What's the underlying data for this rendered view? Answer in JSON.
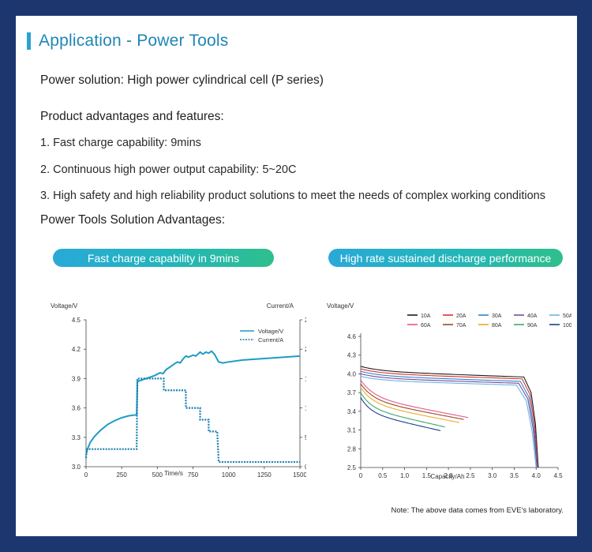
{
  "title": "Application - Power Tools",
  "power_solution": "Power solution: High power cylindrical cell (P series)",
  "advantages_heading": "Product advantages and features:",
  "features": [
    "1. Fast charge capability: 9mins",
    "2. Continuous high power output capability: 5~20C",
    "3. High safety and high reliability product solutions to meet the needs of complex working conditions"
  ],
  "solution_heading": "Power Tools Solution Advantages:",
  "pills": [
    "Fast charge capability in 9mins",
    "High rate sustained discharge performance"
  ],
  "note": "Note: The above data comes from EVE's laboratory.",
  "colors": {
    "accent": "#1f86b5",
    "background": "#1c3670",
    "charge_line": "#1e9cc6",
    "current_line": "#1a7fb0"
  },
  "chart_data": [
    {
      "type": "line",
      "ylabel": "Voltage/V",
      "y2label": "Current/A",
      "xlabel": "Time/s",
      "xlim": [
        0,
        1500
      ],
      "ylim": [
        3.0,
        4.5
      ],
      "y2lim": [
        0,
        25
      ],
      "xticks": [
        "0",
        "250",
        "500",
        "750",
        "1000",
        "1250",
        "1500"
      ],
      "yticks": [
        "3.0",
        "3.3",
        "3.6",
        "3.9",
        "4.2",
        "4.5"
      ],
      "y2ticks": [
        "0",
        "5",
        "10",
        "15",
        "20",
        "25"
      ],
      "legend": [
        "Voltage/V",
        "Current/A"
      ],
      "series": [
        {
          "name": "Voltage/V",
          "axis": "left",
          "points": [
            [
              0,
              3.12
            ],
            [
              10,
              3.18
            ],
            [
              30,
              3.25
            ],
            [
              60,
              3.31
            ],
            [
              100,
              3.37
            ],
            [
              150,
              3.43
            ],
            [
              200,
              3.47
            ],
            [
              250,
              3.5
            ],
            [
              300,
              3.52
            ],
            [
              355,
              3.53
            ],
            [
              360,
              3.87
            ],
            [
              400,
              3.89
            ],
            [
              440,
              3.91
            ],
            [
              480,
              3.93
            ],
            [
              520,
              3.96
            ],
            [
              540,
              3.95
            ],
            [
              560,
              3.99
            ],
            [
              600,
              4.03
            ],
            [
              640,
              4.07
            ],
            [
              660,
              4.06
            ],
            [
              680,
              4.1
            ],
            [
              700,
              4.13
            ],
            [
              720,
              4.12
            ],
            [
              750,
              4.14
            ],
            [
              770,
              4.13
            ],
            [
              800,
              4.17
            ],
            [
              820,
              4.15
            ],
            [
              840,
              4.17
            ],
            [
              860,
              4.16
            ],
            [
              880,
              4.18
            ],
            [
              900,
              4.15
            ],
            [
              930,
              4.07
            ],
            [
              960,
              4.06
            ],
            [
              1000,
              4.07
            ],
            [
              1100,
              4.09
            ],
            [
              1200,
              4.1
            ],
            [
              1300,
              4.11
            ],
            [
              1400,
              4.12
            ],
            [
              1500,
              4.13
            ]
          ]
        },
        {
          "name": "Current/A",
          "axis": "right",
          "dashed": true,
          "points": [
            [
              0,
              1.5
            ],
            [
              5,
              3
            ],
            [
              355,
              3
            ],
            [
              360,
              15
            ],
            [
              545,
              15
            ],
            [
              545,
              13
            ],
            [
              700,
              13
            ],
            [
              700,
              10
            ],
            [
              800,
              10
            ],
            [
              800,
              8
            ],
            [
              860,
              8
            ],
            [
              860,
              6
            ],
            [
              920,
              6
            ],
            [
              930,
              0.8
            ],
            [
              1500,
              0.8
            ]
          ]
        }
      ]
    },
    {
      "type": "line",
      "ylabel": "Voltage/V",
      "xlabel": "Capacity/Ah",
      "xlim": [
        0,
        4.5
      ],
      "ylim": [
        2.5,
        4.6
      ],
      "xticks": [
        "0",
        "0.5",
        "1.0",
        "1.5",
        "2.0",
        "2.5",
        "3.0",
        "3.5",
        "4.0",
        "4.5"
      ],
      "yticks": [
        "2.5",
        "2.8",
        "3.1",
        "3.4",
        "3.7",
        "4.0",
        "4.3",
        "4.6"
      ],
      "legend_position": "top",
      "series": [
        {
          "name": "10A",
          "color": "#1c1c1c",
          "start": 4.12,
          "end_v": 3.95,
          "end_x": 3.72,
          "cutoff": 4.05,
          "knee": 3.55
        },
        {
          "name": "20A",
          "color": "#d9322c",
          "start": 4.08,
          "end_v": 3.92,
          "end_x": 3.68,
          "cutoff": 4.04,
          "knee": 3.5
        },
        {
          "name": "30A",
          "color": "#2f86c8",
          "start": 4.04,
          "end_v": 3.88,
          "end_x": 3.64,
          "cutoff": 4.03,
          "knee": 3.47
        },
        {
          "name": "40A",
          "color": "#7a4a9c",
          "start": 4.0,
          "end_v": 3.85,
          "end_x": 3.6,
          "cutoff": 4.02,
          "knee": 3.42
        },
        {
          "name": "50A",
          "color": "#6cb4e6",
          "start": 3.96,
          "end_v": 3.82,
          "end_x": 3.55,
          "cutoff": 4.0,
          "knee": 3.38
        },
        {
          "name": "60A",
          "color": "#e7578a",
          "start": 3.9,
          "end_v": 3.3,
          "end_x": 2.45
        },
        {
          "name": "70A",
          "color": "#9a4a2a",
          "start": 3.84,
          "end_v": 3.27,
          "end_x": 2.35
        },
        {
          "name": "80A",
          "color": "#f0a92c",
          "start": 3.78,
          "end_v": 3.22,
          "end_x": 2.25
        },
        {
          "name": "90A",
          "color": "#3aa86a",
          "start": 3.7,
          "end_v": 3.15,
          "end_x": 1.92
        },
        {
          "name": "100A",
          "color": "#1e3f8c",
          "start": 3.62,
          "end_v": 3.09,
          "end_x": 1.82
        }
      ]
    }
  ]
}
